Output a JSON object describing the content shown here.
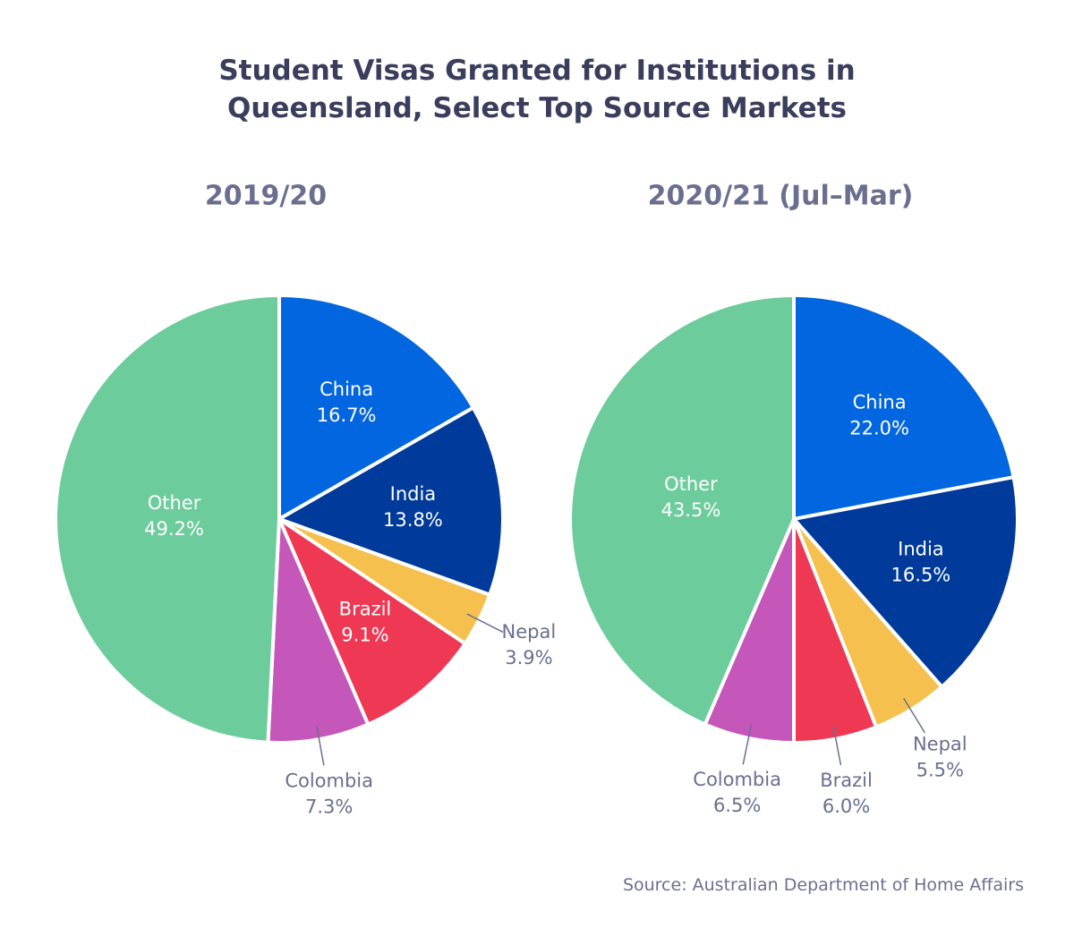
{
  "title": "Student Visas Granted for Institutions in Queensland, Select Top Source Markets",
  "source": "Source: Australian Department of Home Affairs",
  "chart_data": [
    {
      "type": "pie",
      "title": "2019/20",
      "categories": [
        "China",
        "India",
        "Nepal",
        "Brazil",
        "Colombia",
        "Other"
      ],
      "values": [
        16.7,
        13.8,
        3.9,
        9.1,
        7.3,
        49.2
      ],
      "value_labels": [
        "16.7%",
        "13.8%",
        "3.9%",
        "9.1%",
        "7.3%",
        "49.2%"
      ],
      "colors": [
        "#0266e0",
        "#003a9a",
        "#f5c04e",
        "#ef3853",
        "#c556ba",
        "#6dcc9c"
      ]
    },
    {
      "type": "pie",
      "title": "2020/21 (Jul–Mar)",
      "categories": [
        "China",
        "India",
        "Nepal",
        "Brazil",
        "Colombia",
        "Other"
      ],
      "values": [
        22.0,
        16.5,
        5.5,
        6.0,
        6.5,
        43.5
      ],
      "value_labels": [
        "22.0%",
        "16.5%",
        "5.5%",
        "6.0%",
        "6.5%",
        "43.5%"
      ],
      "colors": [
        "#0266e0",
        "#003a9a",
        "#f5c04e",
        "#ef3853",
        "#c556ba",
        "#6dcc9c"
      ]
    }
  ]
}
